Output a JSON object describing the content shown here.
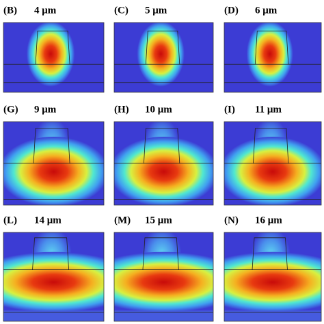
{
  "panels": [
    {
      "letter": "(B)",
      "size": "4 μm"
    },
    {
      "letter": "(C)",
      "size": "5 μm"
    },
    {
      "letter": "(D)",
      "size": "6 μm"
    },
    {
      "letter": "(G)",
      "size": "9 μm"
    },
    {
      "letter": "(H)",
      "size": "10 μm"
    },
    {
      "letter": "(I)",
      "size": "11 μm"
    },
    {
      "letter": "(L)",
      "size": "14 μm"
    },
    {
      "letter": "(M)",
      "size": "15 μm"
    },
    {
      "letter": "(N)",
      "size": "16 μm"
    }
  ]
}
